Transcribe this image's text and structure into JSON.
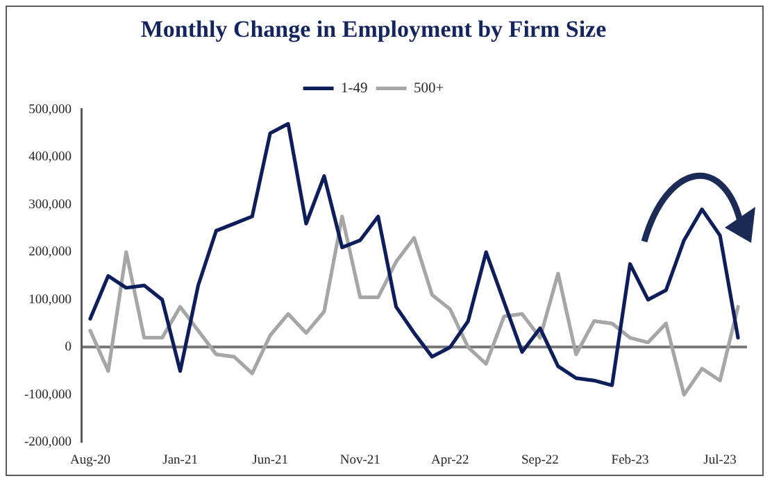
{
  "chart_data": {
    "type": "line",
    "title": "Monthly Change in Employment by Firm Size",
    "categories": [
      "Aug-20",
      null,
      null,
      null,
      null,
      "Jan-21",
      null,
      null,
      null,
      null,
      "Jun-21",
      null,
      null,
      null,
      null,
      "Nov-21",
      null,
      null,
      null,
      null,
      "Apr-22",
      null,
      null,
      null,
      null,
      "Sep-22",
      null,
      null,
      null,
      null,
      "Feb-23",
      null,
      null,
      null,
      null,
      "Jul-23",
      null
    ],
    "series": [
      {
        "name": "1-49",
        "color": "#0d1e5b",
        "values": [
          60000,
          150000,
          125000,
          130000,
          100000,
          -50000,
          130000,
          245000,
          260000,
          275000,
          450000,
          470000,
          260000,
          360000,
          210000,
          225000,
          275000,
          85000,
          30000,
          -20000,
          0,
          55000,
          200000,
          95000,
          -10000,
          40000,
          -40000,
          -65000,
          -70000,
          -80000,
          175000,
          100000,
          120000,
          225000,
          290000,
          235000,
          20000
        ]
      },
      {
        "name": "500+",
        "color": "#a6a6a6",
        "values": [
          35000,
          -50000,
          200000,
          20000,
          20000,
          85000,
          35000,
          -15000,
          -20000,
          -55000,
          25000,
          70000,
          30000,
          75000,
          275000,
          105000,
          105000,
          180000,
          230000,
          110000,
          80000,
          0,
          -35000,
          65000,
          70000,
          20000,
          155000,
          -15000,
          55000,
          50000,
          20000,
          10000,
          50000,
          -100000,
          -45000,
          -70000,
          85000
        ]
      }
    ],
    "ylim": [
      -200000,
      500000
    ],
    "yticks": [
      {
        "value": -200000,
        "label": "-200,000"
      },
      {
        "value": -100000,
        "label": "-100,000"
      },
      0,
      {
        "value": 100000,
        "label": "100,000"
      },
      {
        "value": 200000,
        "label": "200,000"
      },
      {
        "value": 300000,
        "label": "300,000"
      },
      {
        "value": 400000,
        "label": "400,000"
      },
      {
        "value": 500000,
        "label": "500,000"
      }
    ],
    "legend": "top"
  }
}
